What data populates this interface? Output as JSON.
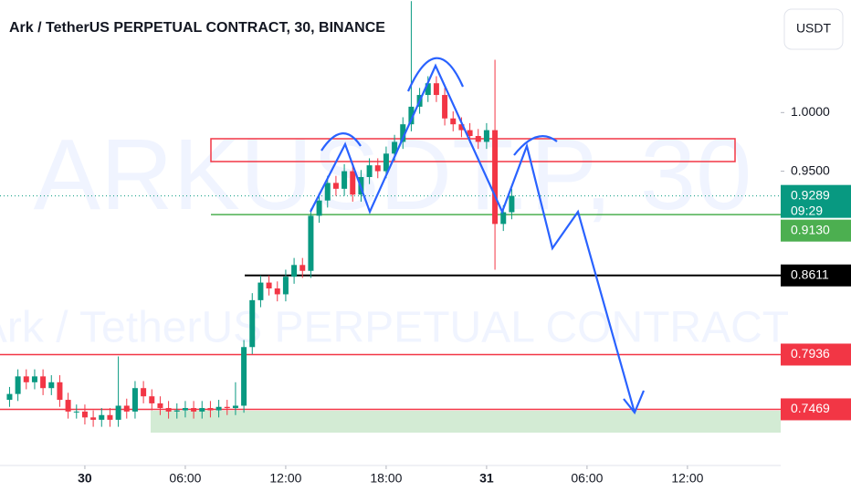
{
  "chart_data": {
    "type": "candlestick",
    "title": "Ark / TetherUS PERPETUAL CONTRACT, 30, BINANCE",
    "watermark": "ARKUSDT.P, 30",
    "watermark_subtitle": "Ark / TetherUS PERPETUAL CONTRACT",
    "currency": "USDT",
    "x": [
      -4.5,
      -4,
      -3.5,
      -3,
      -2.5,
      -2,
      -1.5,
      -1,
      -0.5,
      0,
      0.5,
      1,
      1.5,
      2,
      2.5,
      3,
      3.5,
      4,
      4.5,
      5,
      5.5,
      6,
      6.5,
      7,
      7.5,
      8,
      8.5,
      9,
      9.5,
      10,
      10.5,
      11,
      11.5,
      12,
      12.5,
      13,
      13.5,
      14,
      14.5,
      15,
      15.5,
      16,
      16.5,
      17,
      17.5,
      18,
      18.5,
      19,
      19.5,
      20,
      20.5,
      21,
      21.5,
      22,
      22.5,
      23,
      23.5,
      24,
      24.5,
      25,
      25.5
    ],
    "open": [
      0.755,
      0.76,
      0.775,
      0.77,
      0.775,
      0.765,
      0.77,
      0.755,
      0.745,
      0.745,
      0.74,
      0.738,
      0.742,
      0.738,
      0.75,
      0.745,
      0.765,
      0.758,
      0.752,
      0.748,
      0.745,
      0.746,
      0.748,
      0.745,
      0.748,
      0.746,
      0.749,
      0.748,
      0.75,
      0.8,
      0.84,
      0.855,
      0.85,
      0.845,
      0.86,
      0.87,
      0.865,
      0.912,
      0.925,
      0.94,
      0.935,
      0.95,
      0.93,
      0.945,
      0.955,
      0.95,
      0.965,
      0.975,
      0.99,
      1.005,
      1.015,
      1.025,
      1.015,
      0.995,
      0.99,
      0.985,
      0.98,
      0.975,
      0.985,
      0.905,
      0.915
    ],
    "high": [
      0.766,
      0.781,
      0.781,
      0.781,
      0.781,
      0.776,
      0.776,
      0.761,
      0.751,
      0.751,
      0.746,
      0.748,
      0.748,
      0.792,
      0.756,
      0.771,
      0.771,
      0.764,
      0.758,
      0.754,
      0.752,
      0.754,
      0.754,
      0.754,
      0.754,
      0.755,
      0.755,
      0.77,
      0.806,
      0.846,
      0.861,
      0.861,
      0.856,
      0.866,
      0.876,
      0.876,
      0.918,
      0.931,
      0.946,
      0.946,
      0.956,
      0.956,
      0.951,
      0.961,
      0.961,
      0.971,
      0.981,
      0.996,
      1.095,
      1.021,
      1.031,
      1.031,
      1.021,
      1.001,
      0.996,
      0.991,
      0.986,
      0.991,
      1.045,
      0.921,
      0.935
    ],
    "low": [
      0.749,
      0.754,
      0.764,
      0.764,
      0.759,
      0.759,
      0.749,
      0.739,
      0.739,
      0.734,
      0.732,
      0.732,
      0.732,
      0.732,
      0.739,
      0.739,
      0.752,
      0.746,
      0.742,
      0.739,
      0.739,
      0.74,
      0.739,
      0.739,
      0.74,
      0.74,
      0.742,
      0.742,
      0.744,
      0.794,
      0.834,
      0.844,
      0.839,
      0.839,
      0.854,
      0.859,
      0.859,
      0.906,
      0.919,
      0.929,
      0.929,
      0.924,
      0.924,
      0.939,
      0.944,
      0.944,
      0.959,
      0.969,
      0.984,
      0.999,
      1.009,
      1.009,
      0.989,
      0.984,
      0.979,
      0.974,
      0.969,
      0.969,
      0.866,
      0.899,
      0.909
    ],
    "close": [
      0.76,
      0.775,
      0.77,
      0.775,
      0.765,
      0.77,
      0.755,
      0.745,
      0.745,
      0.74,
      0.738,
      0.742,
      0.738,
      0.75,
      0.745,
      0.765,
      0.758,
      0.752,
      0.748,
      0.745,
      0.746,
      0.748,
      0.745,
      0.748,
      0.746,
      0.749,
      0.748,
      0.75,
      0.8,
      0.84,
      0.855,
      0.85,
      0.845,
      0.86,
      0.87,
      0.865,
      0.912,
      0.925,
      0.94,
      0.935,
      0.95,
      0.93,
      0.945,
      0.955,
      0.95,
      0.965,
      0.975,
      0.99,
      1.005,
      1.015,
      1.025,
      1.015,
      0.995,
      0.99,
      0.985,
      0.98,
      0.975,
      0.985,
      0.905,
      0.915,
      0.929
    ],
    "up_color": "#089981",
    "down_color": "#f23645",
    "xlim": [
      -5.07,
      41.57
    ],
    "xticks": [
      {
        "value": 0,
        "label": "30"
      },
      {
        "value": 6,
        "label": "06:00"
      },
      {
        "value": 12,
        "label": "12:00"
      },
      {
        "value": 18,
        "label": "18:00"
      },
      {
        "value": 24,
        "label": "31"
      },
      {
        "value": 30,
        "label": "06:00"
      },
      {
        "value": 36,
        "label": "12:00"
      }
    ],
    "ylim": [
      0.699,
      1.096
    ],
    "yticks": [
      {
        "value": 0.95,
        "label": "0.9500"
      },
      {
        "value": 1.0,
        "label": "1.0000"
      }
    ],
    "current_price": {
      "value": 0.9289,
      "label": "0.9289",
      "countdown": "09:29",
      "color": "#089981"
    },
    "price_lines": [
      {
        "value": 0.913,
        "label": "0.9130",
        "color": "#4caf50"
      },
      {
        "value": 0.8611,
        "label": "0.8611",
        "color": "#000000"
      },
      {
        "value": 0.7936,
        "label": "0.7936",
        "color": "#f23645"
      },
      {
        "value": 0.7469,
        "label": "0.7469",
        "color": "#f23645"
      }
    ]
  }
}
